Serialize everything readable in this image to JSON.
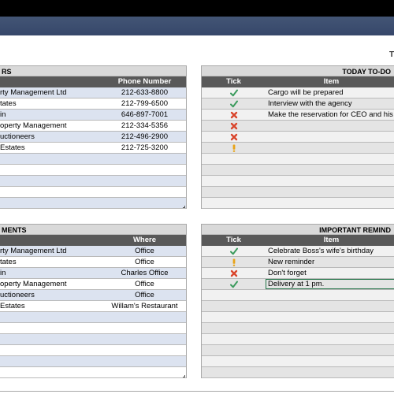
{
  "header": {
    "title_partial": "T"
  },
  "contacts": {
    "title": "RS",
    "col_name": "",
    "col_phone": "Phone Number",
    "rows": [
      {
        "name": "rty Management Ltd",
        "phone": "212-633-8800"
      },
      {
        "name": "tates",
        "phone": "212-799-6500"
      },
      {
        "name": "in",
        "phone": "646-897-7001"
      },
      {
        "name": "operty Management",
        "phone": "212-334-5356"
      },
      {
        "name": "uctioneers",
        "phone": "212-496-2900"
      },
      {
        "name": "Estates",
        "phone": "212-725-3200"
      },
      {
        "name": "",
        "phone": ""
      },
      {
        "name": "",
        "phone": ""
      },
      {
        "name": "",
        "phone": ""
      },
      {
        "name": "",
        "phone": ""
      },
      {
        "name": "",
        "phone": ""
      }
    ]
  },
  "appointments": {
    "title": "MENTS",
    "col_name": "",
    "col_where": "Where",
    "rows": [
      {
        "name": "rty Management Ltd",
        "where": "Office"
      },
      {
        "name": "tates",
        "where": "Office"
      },
      {
        "name": "in",
        "where": "Charles Office"
      },
      {
        "name": "operty Management",
        "where": "Office"
      },
      {
        "name": "uctioneers",
        "where": "Office"
      },
      {
        "name": "Estates",
        "where": "Willam's Restaurant"
      },
      {
        "name": "",
        "where": ""
      },
      {
        "name": "",
        "where": ""
      },
      {
        "name": "",
        "where": ""
      },
      {
        "name": "",
        "where": ""
      },
      {
        "name": "",
        "where": ""
      },
      {
        "name": "",
        "where": ""
      }
    ]
  },
  "todo": {
    "title": "TODAY TO-DO",
    "col_tick": "Tick",
    "col_item": "Item",
    "rows": [
      {
        "icon": "check-icon",
        "item": "Cargo will be prepared"
      },
      {
        "icon": "check-icon",
        "item": "Interview with the agency"
      },
      {
        "icon": "cross-icon",
        "item": "Make the reservation for CEO and his"
      },
      {
        "icon": "cross-icon",
        "item": ""
      },
      {
        "icon": "cross-icon",
        "item": ""
      },
      {
        "icon": "exclamation-icon",
        "item": ""
      },
      {
        "icon": "",
        "item": ""
      },
      {
        "icon": "",
        "item": ""
      },
      {
        "icon": "",
        "item": ""
      },
      {
        "icon": "",
        "item": ""
      },
      {
        "icon": "",
        "item": ""
      }
    ]
  },
  "reminders": {
    "title": "IMPORTANT REMIND",
    "col_tick": "Tick",
    "col_item": "Item",
    "rows": [
      {
        "icon": "check-icon",
        "item": "Celebrate Boss's wife's birthday"
      },
      {
        "icon": "exclamation-icon",
        "item": "New reminder"
      },
      {
        "icon": "cross-icon",
        "item": "Don't forget"
      },
      {
        "icon": "check-icon",
        "item": "Delivery at 1 pm."
      },
      {
        "icon": "",
        "item": ""
      },
      {
        "icon": "",
        "item": ""
      },
      {
        "icon": "",
        "item": ""
      },
      {
        "icon": "",
        "item": ""
      },
      {
        "icon": "",
        "item": ""
      },
      {
        "icon": "",
        "item": ""
      },
      {
        "icon": "",
        "item": ""
      },
      {
        "icon": "",
        "item": ""
      }
    ]
  },
  "colors": {
    "check": "#3a9a5c",
    "cross": "#d9452b",
    "exclamation": "#e8a317",
    "header_dark": "#595959",
    "row_blue": "#dce3f0",
    "nav_band": "#3c4d6f"
  }
}
